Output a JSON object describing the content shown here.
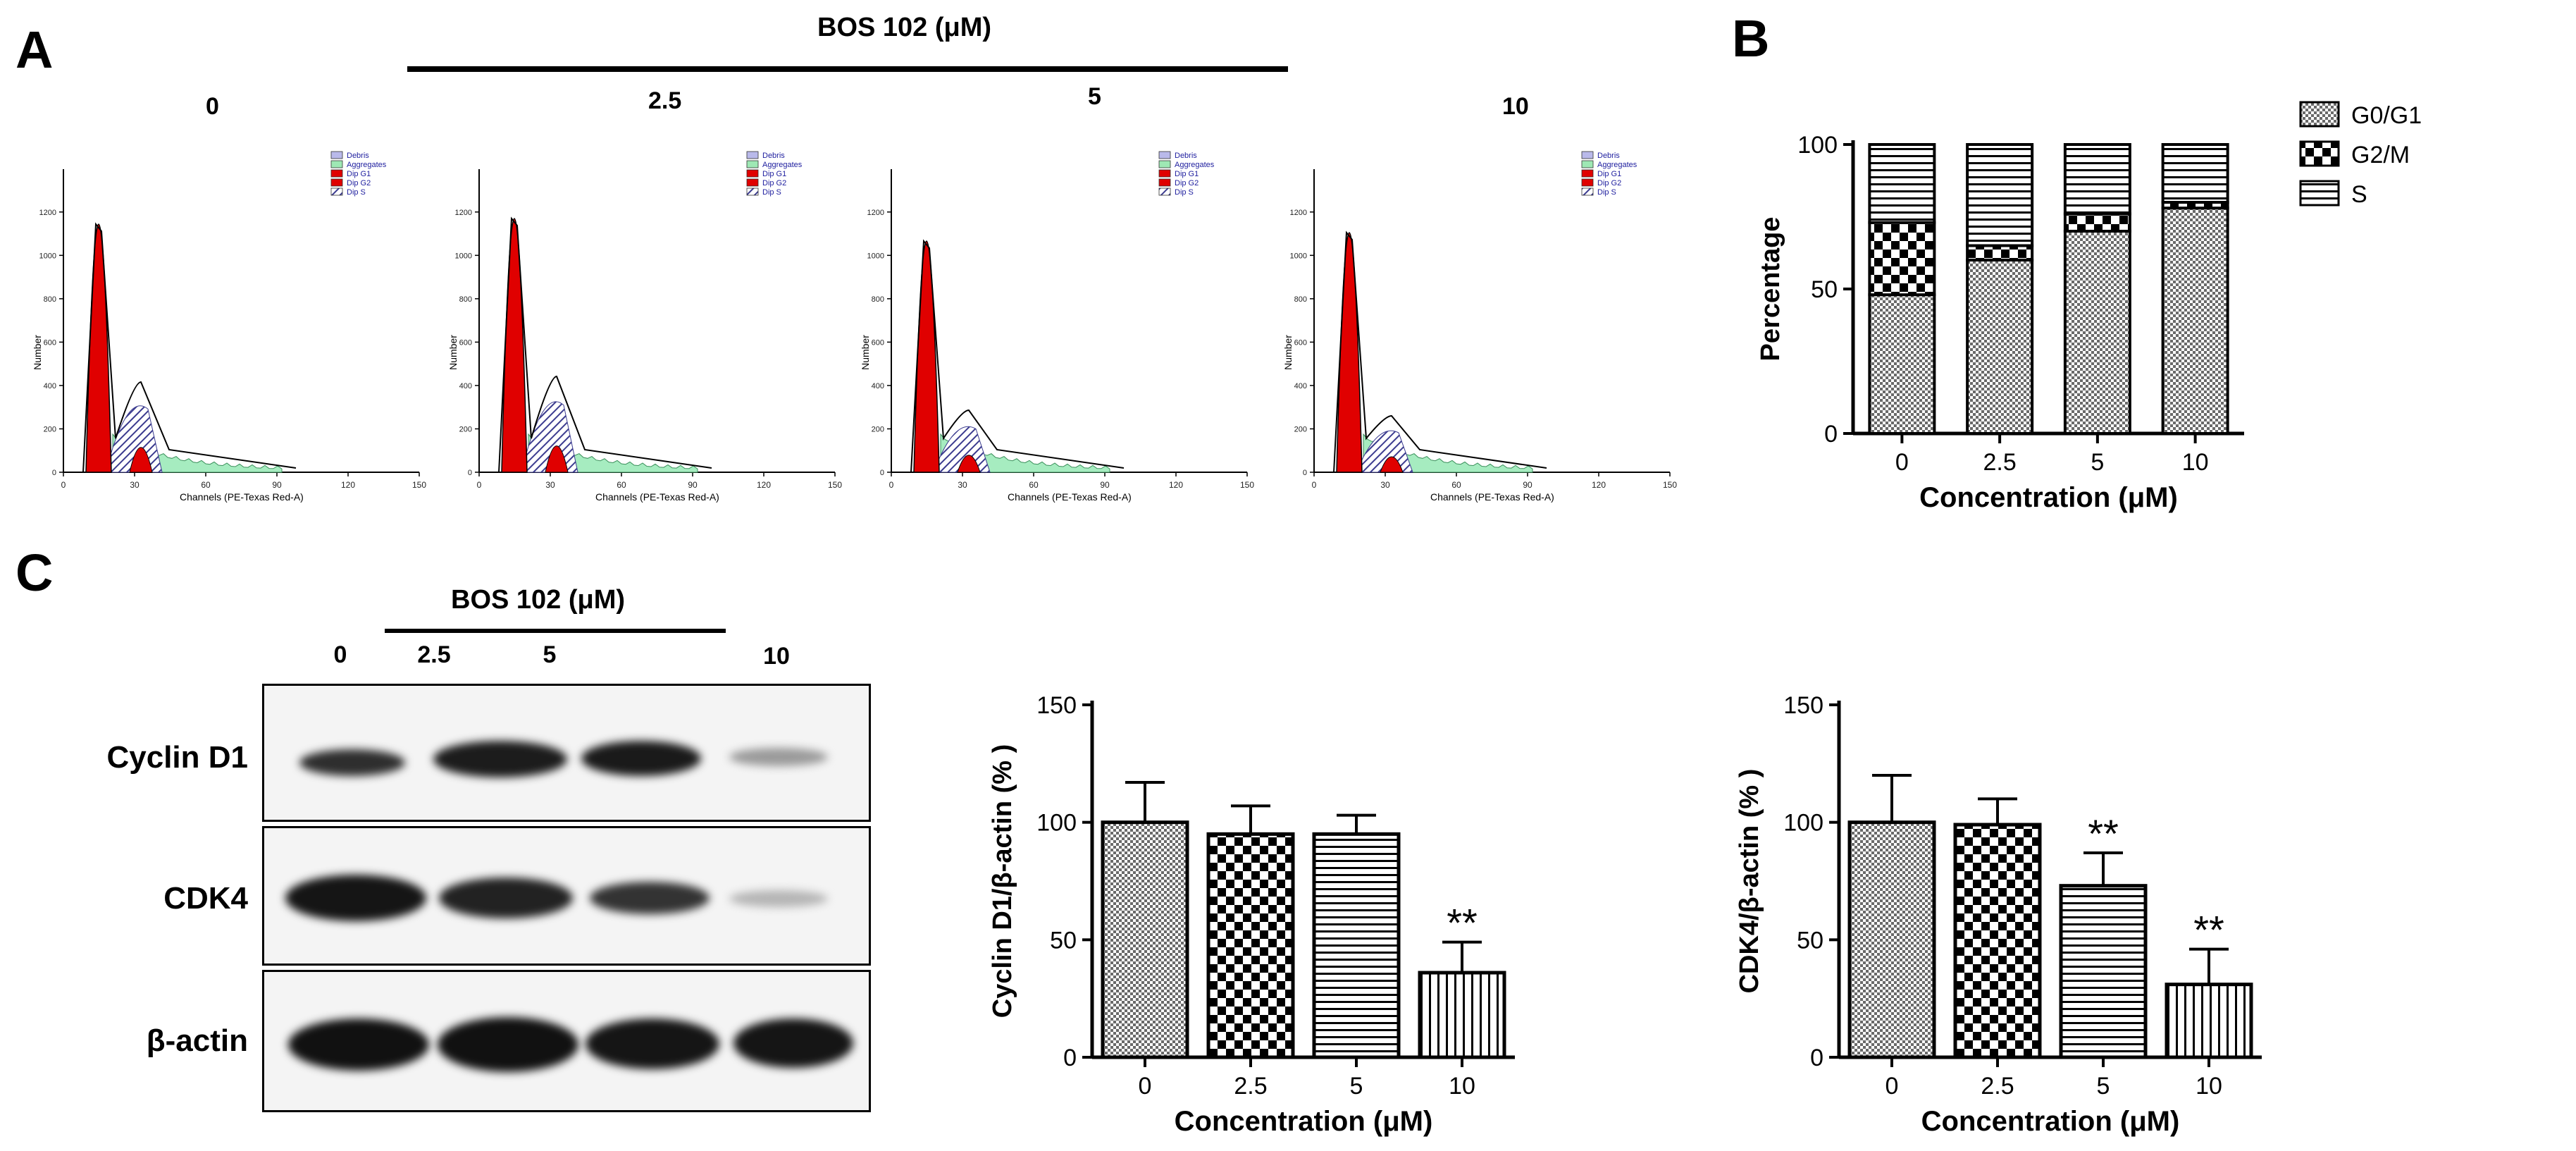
{
  "panel_a": {
    "letter": "A",
    "treatment_label": "BOS 102 (μM)",
    "histograms": [
      {
        "conc": "0"
      },
      {
        "conc": "2.5"
      },
      {
        "conc": "5"
      },
      {
        "conc": "10"
      }
    ],
    "legend": [
      "Debris",
      "Aggregates",
      "Dip G1",
      "Dip G2",
      "Dip S"
    ],
    "xlabel": "Channels (PE-Texas Red-A)",
    "ylabel": "Number",
    "xticks": [
      "0",
      "30",
      "60",
      "90",
      "120",
      "150"
    ],
    "yticks": [
      "0",
      "200",
      "400",
      "600",
      "800",
      "1000",
      "1200"
    ]
  },
  "panel_b": {
    "letter": "B"
  },
  "panel_c": {
    "letter": "C",
    "treatment_label": "BOS 102 (μM)",
    "lanes": [
      "0",
      "2.5",
      "5",
      "10"
    ],
    "proteins": [
      "Cyclin D1",
      "CDK4",
      "β-actin"
    ]
  },
  "chart_data": [
    {
      "id": "B",
      "type": "bar",
      "stacked": true,
      "categories": [
        "0",
        "2.5",
        "5",
        "10"
      ],
      "series": [
        {
          "name": "G0/G1",
          "values": [
            48,
            60,
            70,
            78
          ]
        },
        {
          "name": "G2/M",
          "values": [
            25,
            5,
            6,
            2
          ]
        },
        {
          "name": "S",
          "values": [
            27,
            35,
            24,
            20
          ]
        }
      ],
      "ylabel": "Percentage",
      "xlabel": "Concentration (μM)",
      "ylim": [
        0,
        100
      ],
      "yticks": [
        "0",
        "50",
        "100"
      ],
      "legend": [
        "G0/G1",
        "G2/M",
        "S"
      ]
    },
    {
      "id": "C1",
      "type": "bar",
      "categories": [
        "0",
        "2.5",
        "5",
        "10"
      ],
      "values": [
        100,
        95,
        95,
        36
      ],
      "errors": [
        17,
        12,
        8,
        13
      ],
      "significance": [
        "",
        "",
        "",
        "**"
      ],
      "ylabel": "Cyclin D1/β-actin (% )",
      "xlabel": "Concentration (μM)",
      "ylim": [
        0,
        150
      ],
      "yticks": [
        "0",
        "50",
        "100",
        "150"
      ]
    },
    {
      "id": "C2",
      "type": "bar",
      "categories": [
        "0",
        "2.5",
        "5",
        "10"
      ],
      "values": [
        100,
        99,
        73,
        31
      ],
      "errors": [
        20,
        11,
        14,
        15
      ],
      "significance": [
        "",
        "",
        "**",
        "**"
      ],
      "ylabel": "CDK4/β-actin (% )",
      "xlabel": "Concentration (μM)",
      "ylim": [
        0,
        150
      ],
      "yticks": [
        "0",
        "50",
        "100",
        "150"
      ]
    }
  ]
}
